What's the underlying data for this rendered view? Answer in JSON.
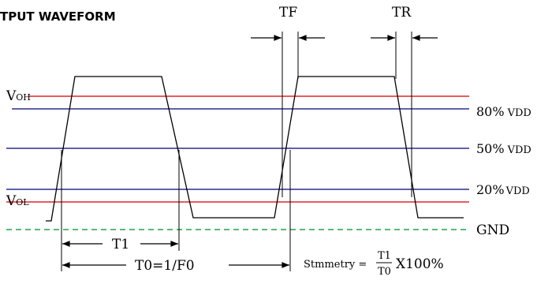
{
  "title": "TPUT WAVEFORM",
  "labels": {
    "voh_main": "V",
    "voh_sub": "OH",
    "vol_main": "V",
    "vol_sub": "OL",
    "tf": "TF",
    "tr": "TR",
    "pct80": "80%",
    "pct50": "50%",
    "pct20": "20%",
    "vdd": "VDD",
    "gnd": "GND",
    "t1": "T1",
    "t0": "T0=1/F0",
    "symmetry_prefix": "Stmmetry =",
    "frac_num": "T1",
    "frac_den": "T0",
    "symmetry_suffix": "X100%"
  },
  "colors": {
    "voh_line": "#e0272b",
    "vol_line": "#e0272b",
    "level_lines": "#2b2f8f",
    "gnd_line": "#1aa64a",
    "waveform": "#000000"
  }
}
